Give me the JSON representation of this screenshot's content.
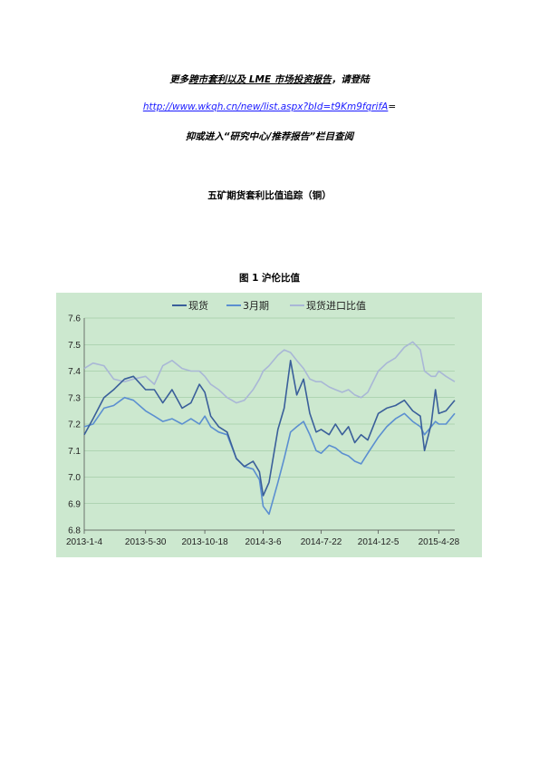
{
  "header": {
    "promo_prefix": "更多",
    "promo_link": "跨市套利以及 LME 市场投资报告",
    "promo_suffix": "，请登陆",
    "url_text": "http://www.wkqh.cn/new/list.aspx?bId=t9Km9fqrifA",
    "url_suffix": "=",
    "sub_text": "抑或进入“研究中心/推荐报告”栏目查阅"
  },
  "report": {
    "title": "五矿期货套利比值追踪（铜）"
  },
  "figure": {
    "caption": "图 1   沪伦比值"
  },
  "colors": {
    "plot_bg": "#cce8cf",
    "spot": "#3a5f9a",
    "month3": "#5b8fd0",
    "ratio": "#a9b7d6"
  },
  "chart_data": {
    "type": "line",
    "title": "",
    "xlabel": "",
    "ylabel": "",
    "ylim": [
      6.8,
      7.6
    ],
    "yticks": [
      "7.6",
      "7.5",
      "7.4",
      "7.3",
      "7.2",
      "7.1",
      "7.0",
      "6.9",
      "6.8"
    ],
    "xticks": [
      "2013-1-4",
      "2013-5-30",
      "2013-10-18",
      "2014-3-6",
      "2014-7-22",
      "2014-12-5",
      "2015-4-28"
    ],
    "legend_position": "top",
    "grid": "horizontal",
    "x_start": "2013-1-4",
    "x_end": "2015-6-5",
    "series": [
      {
        "name": "现货",
        "color": "#3a5f9a",
        "points": [
          [
            "2013-1-4",
            7.16
          ],
          [
            "2013-1-25",
            7.22
          ],
          [
            "2013-2-20",
            7.3
          ],
          [
            "2013-3-15",
            7.33
          ],
          [
            "2013-4-10",
            7.37
          ],
          [
            "2013-5-1",
            7.38
          ],
          [
            "2013-5-30",
            7.33
          ],
          [
            "2013-6-20",
            7.33
          ],
          [
            "2013-7-10",
            7.28
          ],
          [
            "2013-8-1",
            7.33
          ],
          [
            "2013-8-25",
            7.26
          ],
          [
            "2013-9-15",
            7.28
          ],
          [
            "2013-10-5",
            7.35
          ],
          [
            "2013-10-18",
            7.32
          ],
          [
            "2013-11-1",
            7.23
          ],
          [
            "2013-11-20",
            7.19
          ],
          [
            "2013-12-10",
            7.17
          ],
          [
            "2014-1-1",
            7.07
          ],
          [
            "2014-1-20",
            7.04
          ],
          [
            "2014-2-10",
            7.06
          ],
          [
            "2014-2-25",
            7.02
          ],
          [
            "2014-3-6",
            6.93
          ],
          [
            "2014-3-20",
            6.98
          ],
          [
            "2014-4-10",
            7.18
          ],
          [
            "2014-4-25",
            7.26
          ],
          [
            "2014-5-10",
            7.44
          ],
          [
            "2014-5-25",
            7.31
          ],
          [
            "2014-6-10",
            7.37
          ],
          [
            "2014-6-25",
            7.24
          ],
          [
            "2014-7-10",
            7.17
          ],
          [
            "2014-7-22",
            7.18
          ],
          [
            "2014-8-10",
            7.16
          ],
          [
            "2014-8-25",
            7.2
          ],
          [
            "2014-9-10",
            7.16
          ],
          [
            "2014-9-25",
            7.19
          ],
          [
            "2014-10-10",
            7.13
          ],
          [
            "2014-10-25",
            7.16
          ],
          [
            "2014-11-10",
            7.14
          ],
          [
            "2014-12-5",
            7.24
          ],
          [
            "2014-12-25",
            7.26
          ],
          [
            "2015-1-15",
            7.27
          ],
          [
            "2015-2-5",
            7.29
          ],
          [
            "2015-2-25",
            7.25
          ],
          [
            "2015-3-15",
            7.23
          ],
          [
            "2015-3-25",
            7.1
          ],
          [
            "2015-4-10",
            7.2
          ],
          [
            "2015-4-20",
            7.33
          ],
          [
            "2015-4-28",
            7.24
          ],
          [
            "2015-5-15",
            7.25
          ],
          [
            "2015-6-5",
            7.29
          ]
        ]
      },
      {
        "name": "3月期",
        "color": "#5b8fd0",
        "points": [
          [
            "2013-1-4",
            7.19
          ],
          [
            "2013-1-25",
            7.2
          ],
          [
            "2013-2-20",
            7.26
          ],
          [
            "2013-3-15",
            7.27
          ],
          [
            "2013-4-10",
            7.3
          ],
          [
            "2013-5-1",
            7.29
          ],
          [
            "2013-5-30",
            7.25
          ],
          [
            "2013-6-20",
            7.23
          ],
          [
            "2013-7-10",
            7.21
          ],
          [
            "2013-8-1",
            7.22
          ],
          [
            "2013-8-25",
            7.2
          ],
          [
            "2013-9-15",
            7.22
          ],
          [
            "2013-10-5",
            7.2
          ],
          [
            "2013-10-18",
            7.23
          ],
          [
            "2013-11-1",
            7.19
          ],
          [
            "2013-11-20",
            7.17
          ],
          [
            "2013-12-10",
            7.16
          ],
          [
            "2014-1-1",
            7.07
          ],
          [
            "2014-1-20",
            7.04
          ],
          [
            "2014-2-10",
            7.03
          ],
          [
            "2014-2-25",
            6.99
          ],
          [
            "2014-3-6",
            6.89
          ],
          [
            "2014-3-20",
            6.86
          ],
          [
            "2014-4-10",
            6.98
          ],
          [
            "2014-4-25",
            7.07
          ],
          [
            "2014-5-10",
            7.17
          ],
          [
            "2014-5-25",
            7.19
          ],
          [
            "2014-6-10",
            7.21
          ],
          [
            "2014-6-25",
            7.16
          ],
          [
            "2014-7-10",
            7.1
          ],
          [
            "2014-7-22",
            7.09
          ],
          [
            "2014-8-10",
            7.12
          ],
          [
            "2014-8-25",
            7.11
          ],
          [
            "2014-9-10",
            7.09
          ],
          [
            "2014-9-25",
            7.08
          ],
          [
            "2014-10-10",
            7.06
          ],
          [
            "2014-10-25",
            7.05
          ],
          [
            "2014-11-10",
            7.09
          ],
          [
            "2014-12-5",
            7.15
          ],
          [
            "2014-12-25",
            7.19
          ],
          [
            "2015-1-15",
            7.22
          ],
          [
            "2015-2-5",
            7.24
          ],
          [
            "2015-2-25",
            7.21
          ],
          [
            "2015-3-15",
            7.19
          ],
          [
            "2015-3-25",
            7.16
          ],
          [
            "2015-4-10",
            7.19
          ],
          [
            "2015-4-20",
            7.21
          ],
          [
            "2015-4-28",
            7.2
          ],
          [
            "2015-5-15",
            7.2
          ],
          [
            "2015-6-5",
            7.24
          ]
        ]
      },
      {
        "name": "现货进口比值",
        "color": "#a9b7d6",
        "points": [
          [
            "2013-1-4",
            7.41
          ],
          [
            "2013-1-25",
            7.43
          ],
          [
            "2013-2-20",
            7.42
          ],
          [
            "2013-3-15",
            7.37
          ],
          [
            "2013-4-10",
            7.36
          ],
          [
            "2013-5-1",
            7.37
          ],
          [
            "2013-5-30",
            7.38
          ],
          [
            "2013-6-20",
            7.35
          ],
          [
            "2013-7-10",
            7.42
          ],
          [
            "2013-8-1",
            7.44
          ],
          [
            "2013-8-25",
            7.41
          ],
          [
            "2013-9-15",
            7.4
          ],
          [
            "2013-10-5",
            7.4
          ],
          [
            "2013-10-18",
            7.38
          ],
          [
            "2013-11-1",
            7.35
          ],
          [
            "2013-11-20",
            7.33
          ],
          [
            "2013-12-10",
            7.3
          ],
          [
            "2014-1-1",
            7.28
          ],
          [
            "2014-1-20",
            7.29
          ],
          [
            "2014-2-10",
            7.33
          ],
          [
            "2014-2-25",
            7.37
          ],
          [
            "2014-3-6",
            7.4
          ],
          [
            "2014-3-20",
            7.42
          ],
          [
            "2014-4-10",
            7.46
          ],
          [
            "2014-4-25",
            7.48
          ],
          [
            "2014-5-10",
            7.47
          ],
          [
            "2014-5-25",
            7.44
          ],
          [
            "2014-6-10",
            7.41
          ],
          [
            "2014-6-25",
            7.37
          ],
          [
            "2014-7-10",
            7.36
          ],
          [
            "2014-7-22",
            7.36
          ],
          [
            "2014-8-10",
            7.34
          ],
          [
            "2014-8-25",
            7.33
          ],
          [
            "2014-9-10",
            7.32
          ],
          [
            "2014-9-25",
            7.33
          ],
          [
            "2014-10-10",
            7.31
          ],
          [
            "2014-10-25",
            7.3
          ],
          [
            "2014-11-10",
            7.32
          ],
          [
            "2014-12-5",
            7.4
          ],
          [
            "2014-12-25",
            7.43
          ],
          [
            "2015-1-15",
            7.45
          ],
          [
            "2015-2-5",
            7.49
          ],
          [
            "2015-2-25",
            7.51
          ],
          [
            "2015-3-15",
            7.48
          ],
          [
            "2015-3-25",
            7.4
          ],
          [
            "2015-4-10",
            7.38
          ],
          [
            "2015-4-20",
            7.38
          ],
          [
            "2015-4-28",
            7.4
          ],
          [
            "2015-5-15",
            7.38
          ],
          [
            "2015-6-5",
            7.36
          ]
        ]
      }
    ]
  }
}
